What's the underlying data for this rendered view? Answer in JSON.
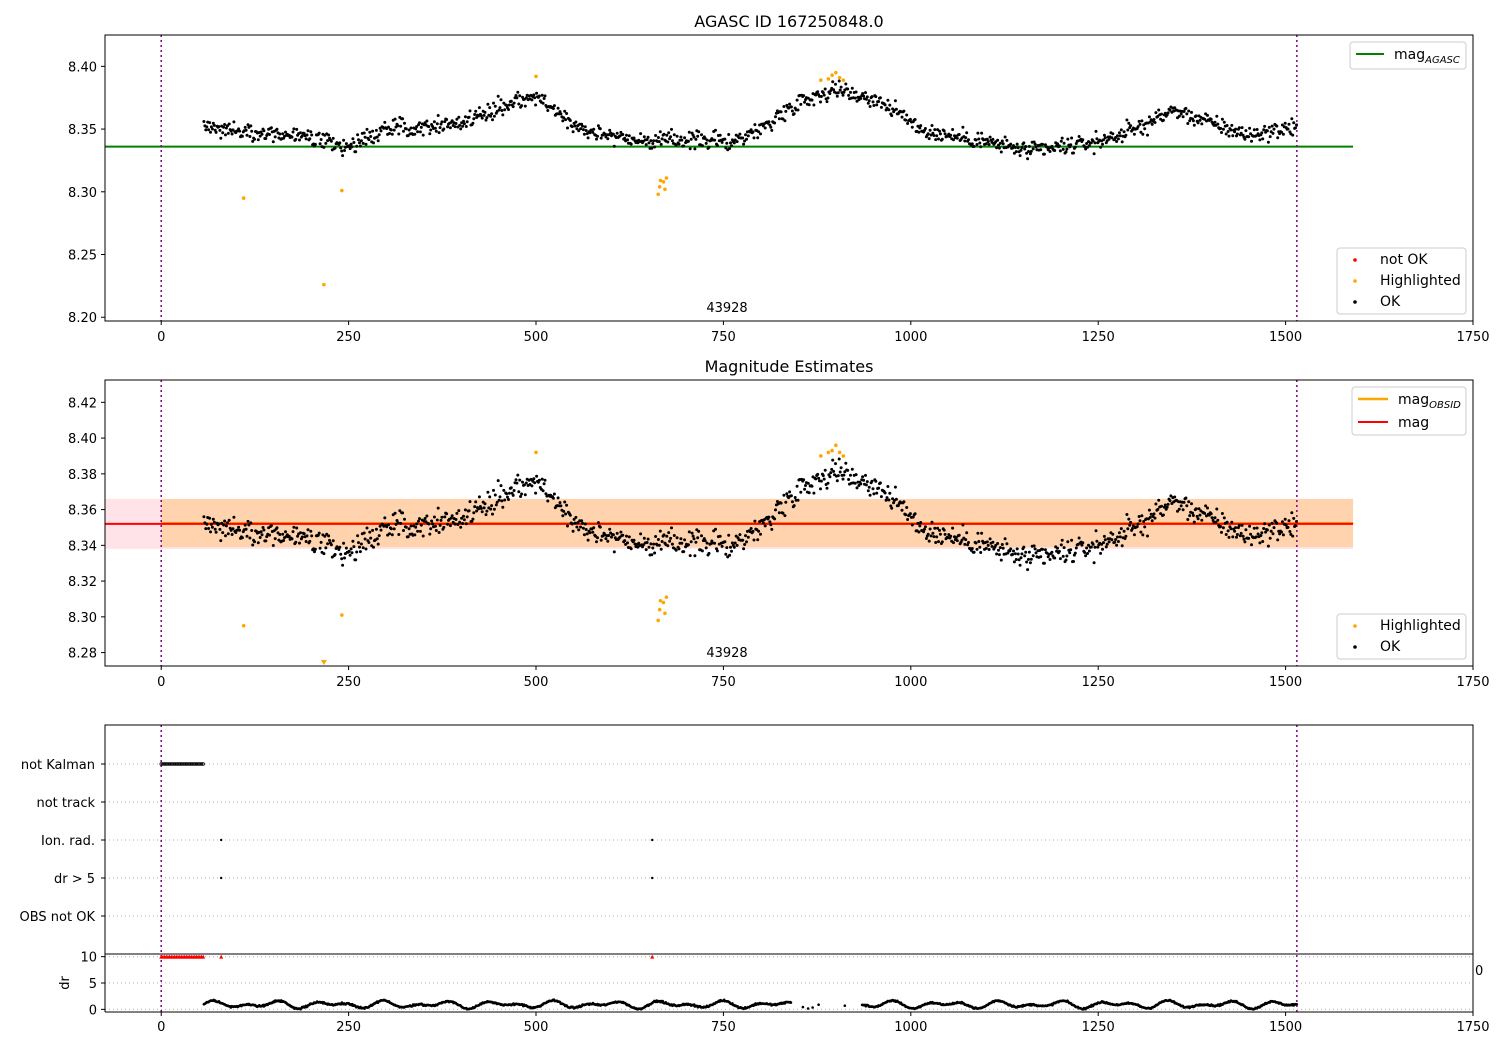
{
  "chart_data": [
    {
      "type": "scatter",
      "title": "AGASC ID 167250848.0",
      "xlim": [
        -75,
        1750
      ],
      "ylim": [
        8.197,
        8.425
      ],
      "xticks": [
        0,
        250,
        500,
        750,
        1000,
        1250,
        1500,
        1750
      ],
      "yticks": [
        8.2,
        8.25,
        8.3,
        8.35,
        8.4
      ],
      "vlines": [
        0,
        1515
      ],
      "annotation": {
        "text": "43928",
        "x": 757
      },
      "reference_line": {
        "name": "mag_AGASC",
        "value": 8.336,
        "x": [
          -75,
          1590
        ],
        "color": "#008000"
      },
      "legend_top": [
        {
          "label": "mag",
          "sub": "AGASC",
          "color": "#008000",
          "kind": "line"
        }
      ],
      "legend_bottom": [
        {
          "label": "not OK",
          "color": "#ff0000",
          "kind": "dot"
        },
        {
          "label": "Highlighted",
          "color": "#ffa500",
          "kind": "dot"
        },
        {
          "label": "OK",
          "color": "#000000",
          "kind": "dot"
        }
      ],
      "series": [
        {
          "name": "OK",
          "color": "#000000",
          "x_range": [
            57,
            1515
          ],
          "trend": [
            [
              57,
              8.352
            ],
            [
              150,
              8.346
            ],
            [
              200,
              8.343
            ],
            [
              245,
              8.335
            ],
            [
              300,
              8.35
            ],
            [
              400,
              8.355
            ],
            [
              470,
              8.372
            ],
            [
              500,
              8.376
            ],
            [
              560,
              8.35
            ],
            [
              650,
              8.34
            ],
            [
              700,
              8.342
            ],
            [
              760,
              8.34
            ],
            [
              800,
              8.35
            ],
            [
              850,
              8.372
            ],
            [
              900,
              8.382
            ],
            [
              960,
              8.372
            ],
            [
              1020,
              8.348
            ],
            [
              1100,
              8.34
            ],
            [
              1160,
              8.332
            ],
            [
              1250,
              8.34
            ],
            [
              1300,
              8.35
            ],
            [
              1350,
              8.365
            ],
            [
              1400,
              8.355
            ],
            [
              1450,
              8.345
            ],
            [
              1515,
              8.352
            ]
          ]
        },
        {
          "name": "Highlighted",
          "color": "#ffa500",
          "points": [
            [
              110,
              8.295
            ],
            [
              217,
              8.226
            ],
            [
              241,
              8.301
            ],
            [
              500,
              8.392
            ],
            [
              663,
              8.298
            ],
            [
              665,
              8.304
            ],
            [
              666,
              8.309
            ],
            [
              670,
              8.308
            ],
            [
              672,
              8.302
            ],
            [
              674,
              8.311
            ],
            [
              880,
              8.389
            ],
            [
              890,
              8.39
            ],
            [
              895,
              8.393
            ],
            [
              900,
              8.395
            ],
            [
              905,
              8.391
            ],
            [
              910,
              8.389
            ]
          ]
        }
      ]
    },
    {
      "type": "scatter",
      "title": "Magnitude Estimates",
      "xlim": [
        -75,
        1750
      ],
      "ylim": [
        8.2725,
        8.4325
      ],
      "xticks": [
        0,
        250,
        500,
        750,
        1000,
        1250,
        1500,
        1750
      ],
      "yticks": [
        8.28,
        8.3,
        8.32,
        8.34,
        8.36,
        8.38,
        8.4,
        8.42
      ],
      "vlines": [
        0,
        1515
      ],
      "annotation": {
        "text": "43928",
        "x": 757
      },
      "bands": [
        {
          "name": "mag",
          "color": "#ffc0cb",
          "y": [
            8.338,
            8.366
          ],
          "x": [
            -75,
            1590
          ]
        },
        {
          "name": "mag_OBSID",
          "color": "#ffa500",
          "y": [
            8.339,
            8.366
          ],
          "x": [
            0,
            1590
          ]
        }
      ],
      "lines": [
        {
          "name": "mag_OBSID",
          "value": 8.3525,
          "color": "#ffa500",
          "x": [
            0,
            1590
          ]
        },
        {
          "name": "mag",
          "value": 8.352,
          "color": "#ff0000",
          "x": [
            -75,
            1590
          ]
        }
      ],
      "legend_top": [
        {
          "label": "mag",
          "sub": "OBSID",
          "color": "#ffa500",
          "kind": "line"
        },
        {
          "label": "mag",
          "sub": "",
          "color": "#ff0000",
          "kind": "line"
        }
      ],
      "legend_bottom": [
        {
          "label": "Highlighted",
          "color": "#ffa500",
          "kind": "dot"
        },
        {
          "label": "OK",
          "color": "#000000",
          "kind": "dot"
        }
      ],
      "series": [
        {
          "name": "OK",
          "color": "#000000",
          "x_range": [
            57,
            1515
          ],
          "trend": [
            [
              57,
              8.352
            ],
            [
              150,
              8.346
            ],
            [
              200,
              8.343
            ],
            [
              245,
              8.335
            ],
            [
              300,
              8.35
            ],
            [
              400,
              8.355
            ],
            [
              470,
              8.372
            ],
            [
              500,
              8.376
            ],
            [
              560,
              8.35
            ],
            [
              650,
              8.34
            ],
            [
              700,
              8.342
            ],
            [
              760,
              8.34
            ],
            [
              800,
              8.35
            ],
            [
              850,
              8.372
            ],
            [
              900,
              8.382
            ],
            [
              960,
              8.372
            ],
            [
              1020,
              8.348
            ],
            [
              1100,
              8.34
            ],
            [
              1160,
              8.332
            ],
            [
              1250,
              8.34
            ],
            [
              1300,
              8.35
            ],
            [
              1350,
              8.365
            ],
            [
              1400,
              8.355
            ],
            [
              1450,
              8.345
            ],
            [
              1515,
              8.352
            ]
          ]
        },
        {
          "name": "Highlighted",
          "color": "#ffa500",
          "points": [
            [
              110,
              8.295
            ],
            [
              241,
              8.301
            ],
            [
              500,
              8.392
            ],
            [
              663,
              8.298
            ],
            [
              665,
              8.304
            ],
            [
              666,
              8.309
            ],
            [
              670,
              8.308
            ],
            [
              672,
              8.302
            ],
            [
              674,
              8.311
            ],
            [
              880,
              8.39
            ],
            [
              890,
              8.392
            ],
            [
              895,
              8.393
            ],
            [
              900,
              8.396
            ],
            [
              905,
              8.392
            ],
            [
              910,
              8.39
            ]
          ]
        },
        {
          "name": "Highlighted (below range)",
          "color": "#ffa500",
          "marker": "triangle-down",
          "points": [
            [
              217,
              8.2725
            ]
          ]
        }
      ]
    },
    {
      "type": "scatter",
      "title": "",
      "xlim": [
        -75,
        1750
      ],
      "categories": [
        "not Kalman",
        "not track",
        "Ion. rad.",
        "dr > 5",
        "OBS not OK"
      ],
      "vlines": [
        0,
        1515
      ],
      "flags": [
        {
          "category": "not Kalman",
          "x_range": [
            0,
            56
          ],
          "count": 26
        },
        {
          "category": "Ion. rad.",
          "points": [
            80,
            655
          ]
        },
        {
          "category": "dr > 5",
          "points": [
            80,
            655
          ]
        }
      ]
    },
    {
      "type": "scatter",
      "title": "",
      "xlim": [
        -75,
        1750
      ],
      "ylim": [
        -0.5,
        10.5
      ],
      "yticks": [
        0,
        5,
        10
      ],
      "ylabel": "dr",
      "edge_label": "0",
      "series": [
        {
          "name": "dr > 5",
          "color": "#ff0000",
          "marker": "triangle",
          "x_range": [
            0,
            56
          ],
          "count": 26,
          "value": 10,
          "extra_points": [
            80,
            655
          ]
        },
        {
          "name": "dr",
          "color": "#000000",
          "x_range": [
            57,
            1515
          ],
          "gaps": [
            [
              840,
              935
            ]
          ],
          "range": [
            0.0,
            2.0
          ]
        }
      ]
    }
  ]
}
